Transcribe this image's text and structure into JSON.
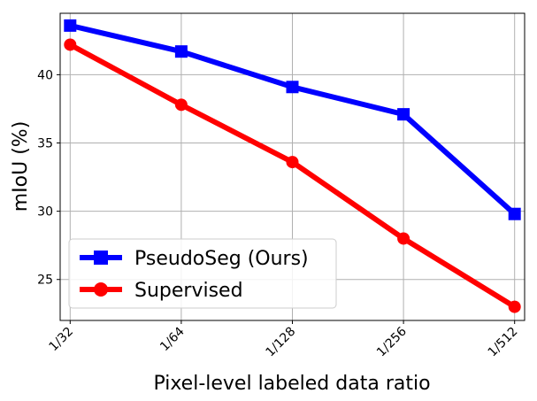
{
  "chart_data": {
    "type": "line",
    "title": "",
    "xlabel": "Pixel-level labeled data ratio",
    "ylabel": "mIoU (%)",
    "categories": [
      "1/32",
      "1/64",
      "1/128",
      "1/256",
      "1/512"
    ],
    "x_scale": "log2 of denominator",
    "x_values": [
      32,
      64,
      128,
      256,
      512
    ],
    "ylim": [
      22,
      44.5
    ],
    "yticks": [
      25,
      30,
      35,
      40
    ],
    "grid": true,
    "legend": "lower-left",
    "series": [
      {
        "name": "PseudoSeg (Ours)",
        "color": "#0000ff",
        "marker": "square",
        "values": [
          43.6,
          41.7,
          39.1,
          37.1,
          29.8
        ]
      },
      {
        "name": "Supervised",
        "color": "#ff0000",
        "marker": "circle",
        "values": [
          42.2,
          37.8,
          33.6,
          28.0,
          23.0
        ]
      }
    ]
  }
}
